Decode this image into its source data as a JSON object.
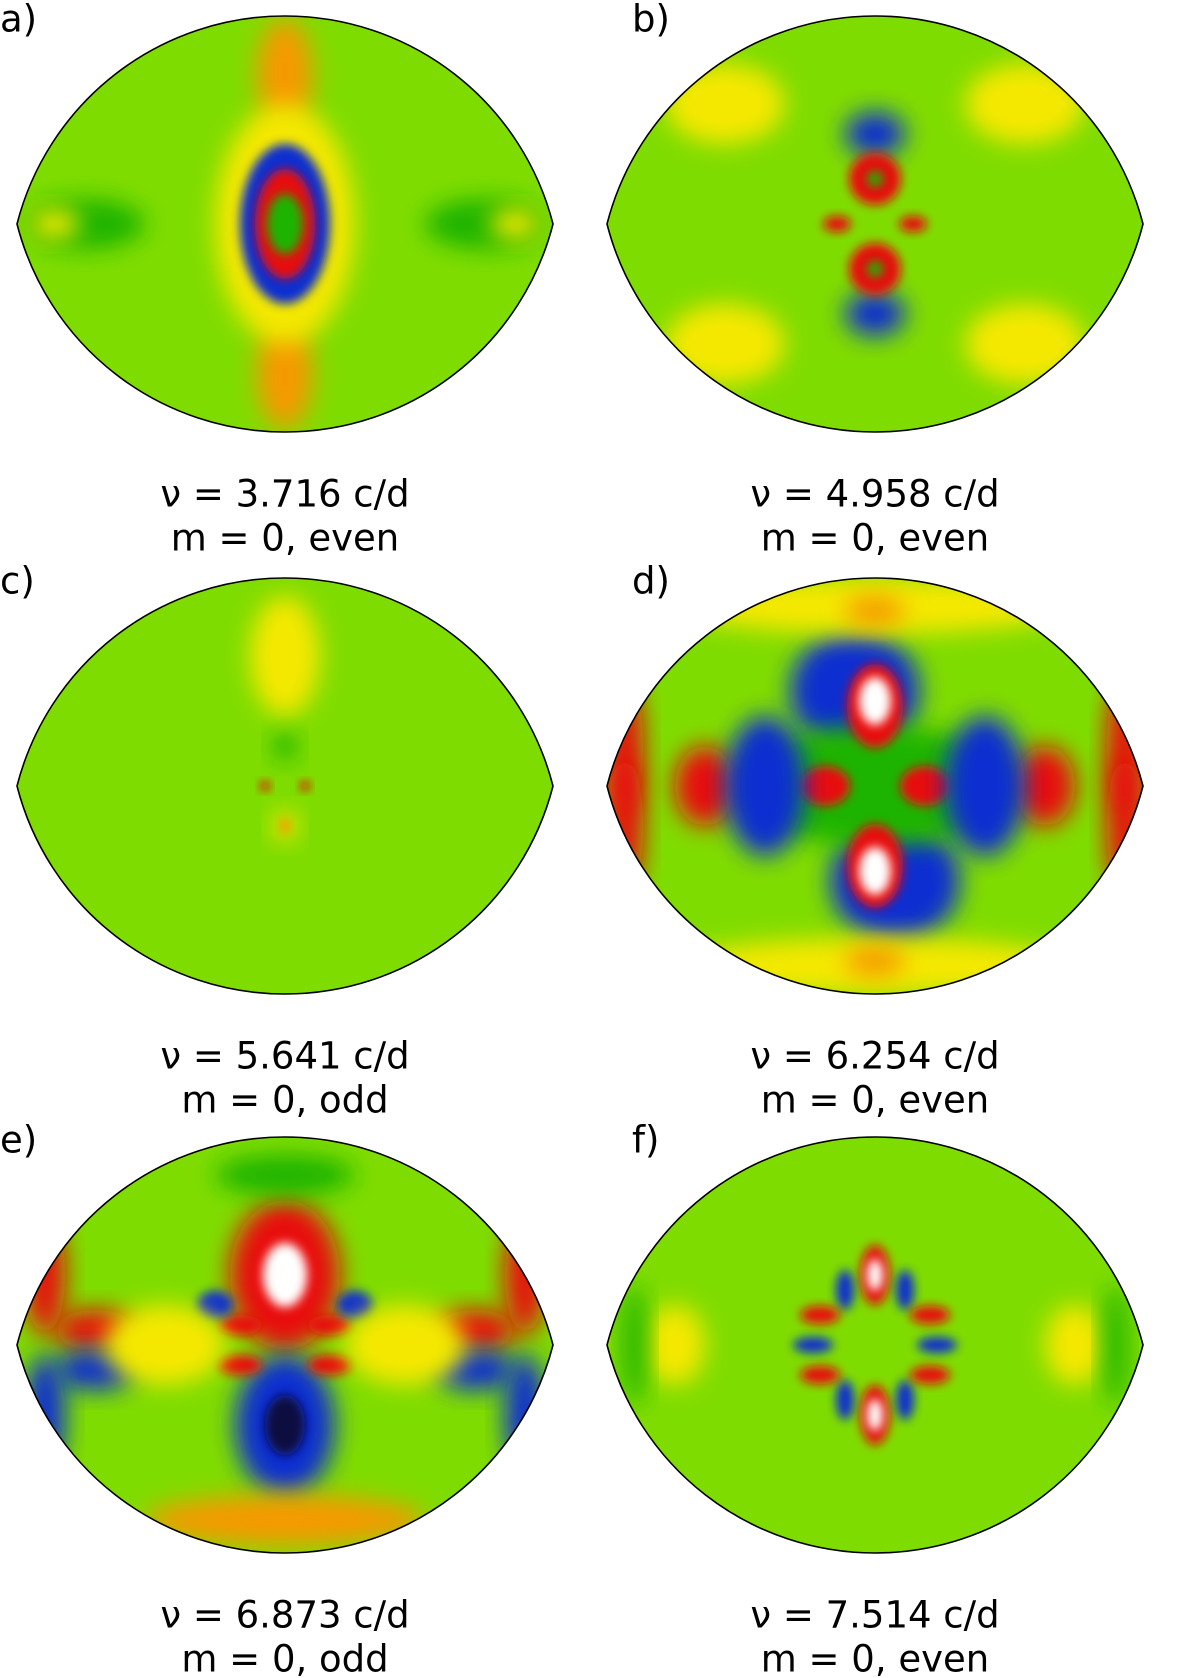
{
  "panels": [
    {
      "label": "a)",
      "frequency": "ν = 3.716 c/d",
      "mode": "m = 0, even"
    },
    {
      "label": "b)",
      "frequency": "ν = 4.958 c/d",
      "mode": "m = 0, even"
    },
    {
      "label": "c)",
      "frequency": "ν = 5.641 c/d",
      "mode": "m = 0, odd"
    },
    {
      "label": "d)",
      "frequency": "ν = 6.254 c/d",
      "mode": "m = 0, even"
    },
    {
      "label": "e)",
      "frequency": "ν = 6.873 c/d",
      "mode": "m = 0, odd"
    },
    {
      "label": "f)",
      "frequency": "ν = 7.514 c/d",
      "mode": "m = 0, even"
    }
  ]
}
